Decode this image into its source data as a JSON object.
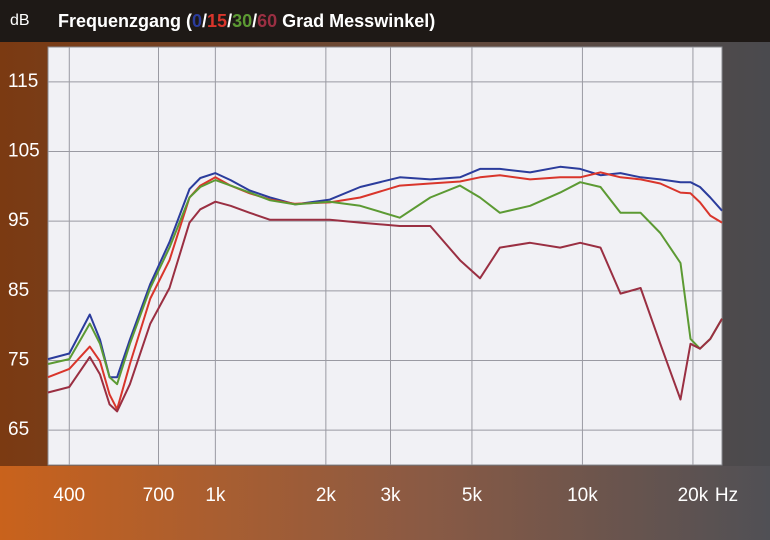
{
  "chart_data": {
    "type": "line",
    "title": [
      "Frequenzgang (",
      "/",
      "/",
      "/",
      " Grad Messwinkel)"
    ],
    "y_label": "dB",
    "x_unit": "Hz",
    "log_x": true,
    "grid": true,
    "xlim": [
      350,
      24000
    ],
    "ylim": [
      60,
      120
    ],
    "yticks": [
      65,
      75,
      85,
      95,
      105,
      115
    ],
    "xticks": [
      400,
      700,
      {
        "value": 1000,
        "label": "1k"
      },
      {
        "value": 2000,
        "label": "2k"
      },
      {
        "value": 3000,
        "label": "3k"
      },
      {
        "value": 5000,
        "label": "5k"
      },
      {
        "value": 10000,
        "label": "10k"
      },
      {
        "value": 20000,
        "label": "20k"
      }
    ],
    "x": [
      350,
      400,
      455,
      485,
      515,
      540,
      585,
      665,
      750,
      850,
      910,
      1000,
      1100,
      1240,
      1410,
      1650,
      2050,
      2480,
      3180,
      3850,
      4640,
      5260,
      5960,
      7200,
      8690,
      9860,
      11200,
      12700,
      14400,
      16300,
      18500,
      19700,
      20900,
      22300,
      24000
    ],
    "series": [
      {
        "name": "0",
        "color": "#2b3c9c",
        "values": [
          75.2,
          76,
          81.6,
          78,
          72.6,
          72.6,
          78,
          86,
          92,
          99.6,
          101.2,
          101.9,
          100.9,
          99.4,
          98.4,
          97.4,
          98.1,
          99.9,
          101.3,
          101,
          101.3,
          102.5,
          102.5,
          102,
          102.8,
          102.5,
          101.6,
          101.9,
          101.3,
          101,
          100.6,
          100.6,
          99.9,
          98.4,
          96.5
        ]
      },
      {
        "name": "15",
        "color": "#d9352b",
        "values": [
          72.6,
          73.8,
          77,
          74.9,
          70.1,
          68,
          74.5,
          83.9,
          89.4,
          98.4,
          100.1,
          101.3,
          100.1,
          99,
          98.1,
          97.5,
          97.7,
          98.4,
          100.1,
          100.4,
          100.7,
          101.3,
          101.6,
          101,
          101.3,
          101.3,
          102,
          101.3,
          101,
          100.4,
          99.1,
          99,
          97.7,
          95.8,
          94.8
        ]
      },
      {
        "name": "30",
        "color": "#5c9a33",
        "values": [
          74.5,
          75.2,
          80.3,
          77.4,
          72.6,
          71.6,
          77.4,
          85.4,
          91.2,
          98.4,
          99.9,
          100.9,
          100.1,
          99.1,
          98,
          97.4,
          97.8,
          97.2,
          95.5,
          98.4,
          100.1,
          98.4,
          96.2,
          97.2,
          99.1,
          100.6,
          99.9,
          96.2,
          96.2,
          93.3,
          89,
          78.1,
          76.7,
          78.1,
          81
        ]
      },
      {
        "name": "60",
        "color": "#9a2f42",
        "values": [
          70.4,
          71.2,
          75.5,
          73,
          68.7,
          67.7,
          71.6,
          80.3,
          85.4,
          94.8,
          96.7,
          97.8,
          97.2,
          96.2,
          95.2,
          95.2,
          95.2,
          94.8,
          94.3,
          94.3,
          89.4,
          86.8,
          91.2,
          91.9,
          91.2,
          91.9,
          91.2,
          84.6,
          85.4,
          77.4,
          69.4,
          77.4,
          76.7,
          78.1,
          81
        ]
      }
    ]
  }
}
